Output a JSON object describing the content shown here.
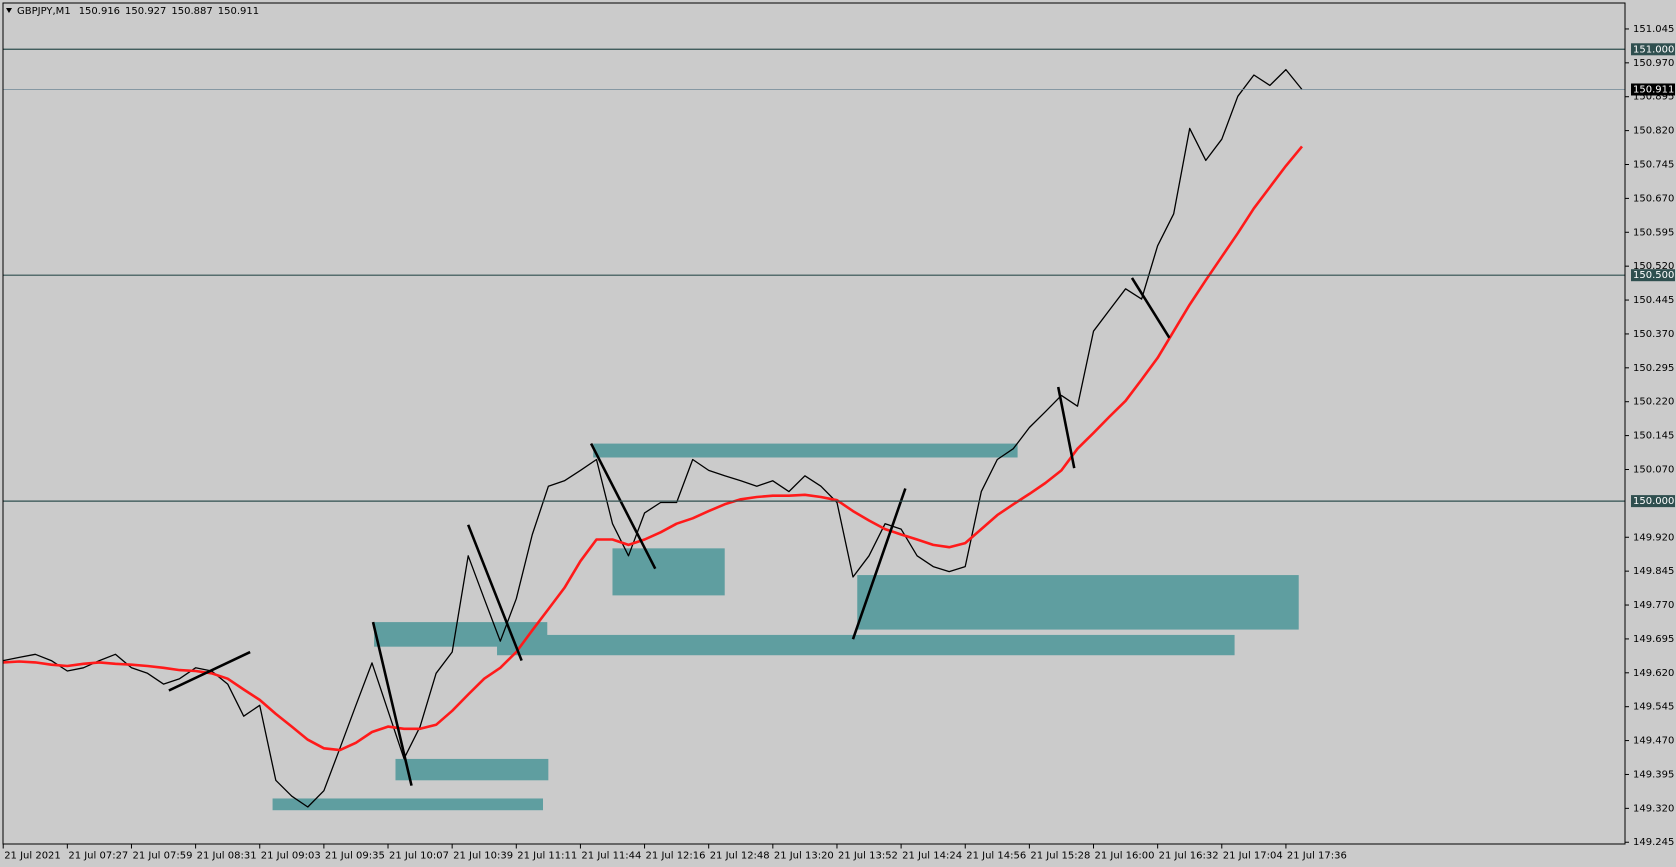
{
  "chart_data": {
    "type": "line",
    "symbol": "GBPJPY,M1",
    "ohlc": [
      150.916,
      150.927,
      150.887,
      150.911
    ],
    "categories": [
      "21 Jul 2021",
      null,
      null,
      null,
      "21 Jul 07:27",
      null,
      null,
      null,
      "21 Jul 07:59",
      null,
      null,
      null,
      "21 Jul 08:31",
      null,
      null,
      null,
      "21 Jul 09:03",
      null,
      null,
      null,
      "21 Jul 09:35",
      null,
      null,
      null,
      "21 Jul 10:07",
      null,
      null,
      null,
      "21 Jul 10:39",
      null,
      null,
      null,
      "21 Jul 11:11",
      null,
      null,
      null,
      "21 Jul 11:44",
      null,
      null,
      null,
      "21 Jul 12:16",
      null,
      null,
      null,
      "21 Jul 12:48",
      null,
      null,
      null,
      "21 Jul 13:20",
      null,
      null,
      null,
      "21 Jul 13:52",
      null,
      null,
      null,
      "21 Jul 14:24",
      null,
      null,
      null,
      "21 Jul 14:56",
      null,
      null,
      null,
      "21 Jul 15:28",
      null,
      null,
      null,
      "21 Jul 16:00",
      null,
      null,
      null,
      "21 Jul 16:32",
      null,
      null,
      null,
      "21 Jul 17:04",
      null,
      null,
      null,
      "21 Jul 17:36",
      null
    ],
    "series": [
      {
        "color": "#000000",
        "values": [
          149.647,
          149.654,
          149.661,
          149.647,
          149.624,
          149.631,
          149.647,
          149.661,
          149.631,
          149.619,
          149.595,
          149.607,
          149.631,
          149.624,
          149.595,
          149.524,
          149.548,
          149.382,
          149.347,
          149.323,
          149.359,
          149.453,
          149.548,
          149.642,
          149.536,
          149.43,
          149.501,
          149.619,
          149.666,
          149.879,
          149.784,
          149.69,
          149.784,
          149.926,
          150.033,
          150.045,
          150.068,
          150.092,
          149.95,
          149.879,
          149.974,
          149.997,
          149.997,
          150.092,
          150.068,
          150.056,
          150.045,
          150.033,
          150.045,
          150.021,
          150.056,
          150.033,
          149.997,
          149.832,
          149.879,
          149.95,
          149.938,
          149.879,
          149.855,
          149.844,
          149.855,
          150.021,
          150.092,
          150.116,
          150.163,
          150.198,
          150.234,
          150.21,
          150.376,
          150.423,
          150.47,
          150.447,
          150.565,
          150.636,
          150.825,
          150.754,
          150.801,
          150.896,
          150.943,
          150.92,
          150.955,
          150.911
        ]
      },
      {
        "color": "#ff1a1a",
        "values": [
          149.643,
          149.645,
          149.643,
          149.638,
          149.635,
          149.64,
          149.643,
          149.64,
          149.638,
          149.635,
          149.631,
          149.626,
          149.624,
          149.619,
          149.607,
          149.583,
          149.56,
          149.529,
          149.501,
          149.472,
          149.453,
          149.449,
          149.465,
          149.489,
          149.501,
          149.496,
          149.496,
          149.505,
          149.536,
          149.572,
          149.607,
          149.631,
          149.666,
          149.714,
          149.761,
          149.808,
          149.867,
          149.915,
          149.915,
          149.903,
          149.915,
          149.931,
          149.95,
          149.962,
          149.978,
          149.993,
          150.004,
          150.009,
          150.012,
          150.012,
          150.014,
          150.009,
          150.002,
          149.978,
          149.957,
          149.938,
          149.926,
          149.915,
          149.903,
          149.898,
          149.907,
          149.938,
          149.969,
          149.993,
          150.016,
          150.04,
          150.068,
          150.116,
          150.151,
          150.187,
          150.222,
          150.269,
          150.317,
          150.376,
          150.435,
          150.489,
          150.541,
          150.593,
          150.648,
          150.695,
          150.742,
          150.785
        ]
      }
    ],
    "ylim": [
      149.24,
      151.102
    ],
    "yticks": [
      151.045,
      {
        "value": 150.97,
        "label": "150.970"
      },
      150.895,
      {
        "value": 150.82,
        "label": "150.820"
      },
      150.745,
      {
        "value": 150.67,
        "label": "150.670"
      },
      150.595,
      {
        "value": 150.52,
        "label": "150.520"
      },
      150.445,
      {
        "value": 150.37,
        "label": "150.370"
      },
      150.295,
      {
        "value": 150.22,
        "label": "150.220"
      },
      150.145,
      {
        "value": 150.07,
        "label": "150.070"
      },
      {
        "value": 149.92,
        "label": "149.920"
      },
      149.845,
      {
        "value": 149.77,
        "label": "149.770"
      },
      149.695,
      {
        "value": 149.62,
        "label": "149.620"
      },
      149.545,
      {
        "value": 149.47,
        "label": "149.470"
      },
      149.395,
      {
        "value": 149.32,
        "label": "149.320"
      },
      149.245
    ],
    "levels": [
      {
        "value": 151,
        "label": "151.000"
      },
      {
        "value": 150.5,
        "label": "150.500"
      },
      {
        "value": 150,
        "label": "150.000"
      }
    ],
    "current_price": {
      "value": 150.911,
      "label": "150.911"
    },
    "level_color": "#2f4f4f",
    "current_color": "#6f8796"
  }
}
